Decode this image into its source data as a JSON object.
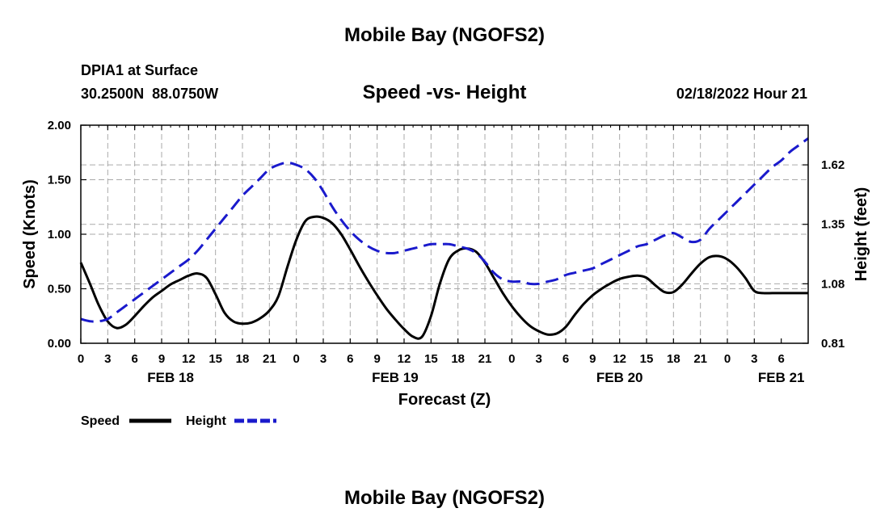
{
  "header": {
    "title": "Mobile Bay (NGOFS2)",
    "station": "DPIA1 at Surface",
    "coords": "30.2500N  88.0750W",
    "chart_title": "Speed -vs- Height",
    "timestamp": "02/18/2022 Hour 21"
  },
  "footer": {
    "title": "Mobile Bay (NGOFS2)"
  },
  "chart_data": {
    "type": "line",
    "title": "Speed -vs- Height",
    "xlabel": "Forecast (Z)",
    "ylabel_left": "Speed (Knots)",
    "ylabel_right": "Height (feet)",
    "x_range_hours": [
      0,
      81
    ],
    "ylim_left": [
      0,
      2.0
    ],
    "ylim_right": [
      0.81,
      1.8
    ],
    "y_ticks_left": [
      "0.00",
      "0.50",
      "1.00",
      "1.50",
      "2.00"
    ],
    "y_ticks_left_values": [
      0,
      0.5,
      1.0,
      1.5,
      2.0
    ],
    "y_ticks_right": [
      "0.81",
      "1.08",
      "1.35",
      "1.62"
    ],
    "y_ticks_right_values": [
      0.81,
      1.08,
      1.35,
      1.62
    ],
    "x_tick_labels": [
      "0",
      "3",
      "6",
      "9",
      "12",
      "15",
      "18",
      "21",
      "0",
      "3",
      "6",
      "9",
      "12",
      "15",
      "18",
      "21",
      "0",
      "3",
      "6",
      "9",
      "12",
      "15",
      "18",
      "21",
      "0",
      "3",
      "6"
    ],
    "date_labels": [
      {
        "label": "FEB 18",
        "hour": 10
      },
      {
        "label": "FEB 19",
        "hour": 35
      },
      {
        "label": "FEB 20",
        "hour": 60
      },
      {
        "label": "FEB 21",
        "hour": 78
      }
    ],
    "series": [
      {
        "name": "Speed",
        "axis": "left",
        "color": "#000000",
        "dash": "solid",
        "x": [
          0,
          1,
          2,
          3,
          4,
          5,
          6,
          7,
          8,
          9,
          10,
          11,
          12,
          13,
          14,
          15,
          16,
          17,
          18,
          19,
          20,
          21,
          22,
          23,
          24,
          25,
          26,
          27,
          28,
          29,
          30,
          31,
          32,
          33,
          34,
          35,
          36,
          37,
          38,
          39,
          40,
          41,
          42,
          43,
          44,
          45,
          46,
          47,
          48,
          49,
          50,
          51,
          52,
          53,
          54,
          55,
          56,
          57,
          58,
          59,
          60,
          61,
          62,
          63,
          64,
          65,
          66,
          67,
          68,
          69,
          70,
          71,
          72,
          73,
          74,
          75,
          76,
          77,
          78,
          79,
          80,
          81
        ],
        "values": [
          0.74,
          0.55,
          0.35,
          0.2,
          0.14,
          0.17,
          0.25,
          0.34,
          0.42,
          0.48,
          0.54,
          0.58,
          0.62,
          0.64,
          0.6,
          0.45,
          0.28,
          0.2,
          0.18,
          0.19,
          0.23,
          0.3,
          0.43,
          0.7,
          0.95,
          1.12,
          1.16,
          1.15,
          1.1,
          1.0,
          0.86,
          0.71,
          0.57,
          0.44,
          0.32,
          0.22,
          0.13,
          0.06,
          0.06,
          0.25,
          0.55,
          0.77,
          0.85,
          0.87,
          0.84,
          0.74,
          0.6,
          0.46,
          0.34,
          0.24,
          0.16,
          0.11,
          0.08,
          0.09,
          0.15,
          0.26,
          0.36,
          0.44,
          0.5,
          0.55,
          0.59,
          0.61,
          0.62,
          0.6,
          0.53,
          0.47,
          0.47,
          0.54,
          0.64,
          0.73,
          0.79,
          0.8,
          0.77,
          0.7,
          0.6,
          0.48,
          0.46,
          0.46,
          0.46,
          0.46,
          0.46,
          0.46
        ]
      },
      {
        "name": "Height",
        "axis": "right",
        "color": "#1a1acc",
        "dash": "dashed",
        "x": [
          0,
          1,
          2,
          3,
          4,
          5,
          6,
          7,
          8,
          9,
          10,
          11,
          12,
          13,
          14,
          15,
          16,
          17,
          18,
          19,
          20,
          21,
          22,
          23,
          24,
          25,
          26,
          27,
          28,
          29,
          30,
          31,
          32,
          33,
          34,
          35,
          36,
          37,
          38,
          39,
          40,
          41,
          42,
          43,
          44,
          45,
          46,
          47,
          48,
          49,
          50,
          51,
          52,
          53,
          54,
          55,
          56,
          57,
          58,
          59,
          60,
          61,
          62,
          63,
          64,
          65,
          66,
          67,
          68,
          69,
          70,
          71,
          72,
          73,
          74,
          75,
          76,
          77,
          78,
          79,
          80,
          81
        ],
        "values": [
          0.92,
          0.91,
          0.91,
          0.92,
          0.95,
          0.98,
          1.01,
          1.04,
          1.07,
          1.1,
          1.13,
          1.16,
          1.19,
          1.23,
          1.28,
          1.33,
          1.38,
          1.43,
          1.48,
          1.52,
          1.56,
          1.6,
          1.62,
          1.63,
          1.62,
          1.6,
          1.56,
          1.5,
          1.43,
          1.37,
          1.32,
          1.28,
          1.25,
          1.23,
          1.22,
          1.22,
          1.23,
          1.24,
          1.25,
          1.26,
          1.26,
          1.26,
          1.25,
          1.24,
          1.22,
          1.18,
          1.13,
          1.1,
          1.09,
          1.09,
          1.08,
          1.08,
          1.09,
          1.1,
          1.12,
          1.13,
          1.14,
          1.15,
          1.17,
          1.19,
          1.21,
          1.23,
          1.25,
          1.26,
          1.28,
          1.3,
          1.31,
          1.29,
          1.27,
          1.28,
          1.33,
          1.37,
          1.41,
          1.45,
          1.49,
          1.53,
          1.57,
          1.61,
          1.64,
          1.68,
          1.71,
          1.74
        ]
      }
    ],
    "legend": [
      {
        "label": "Speed",
        "color": "#000000",
        "dash": "solid"
      },
      {
        "label": "Height",
        "color": "#1a1acc",
        "dash": "dashed"
      }
    ]
  }
}
